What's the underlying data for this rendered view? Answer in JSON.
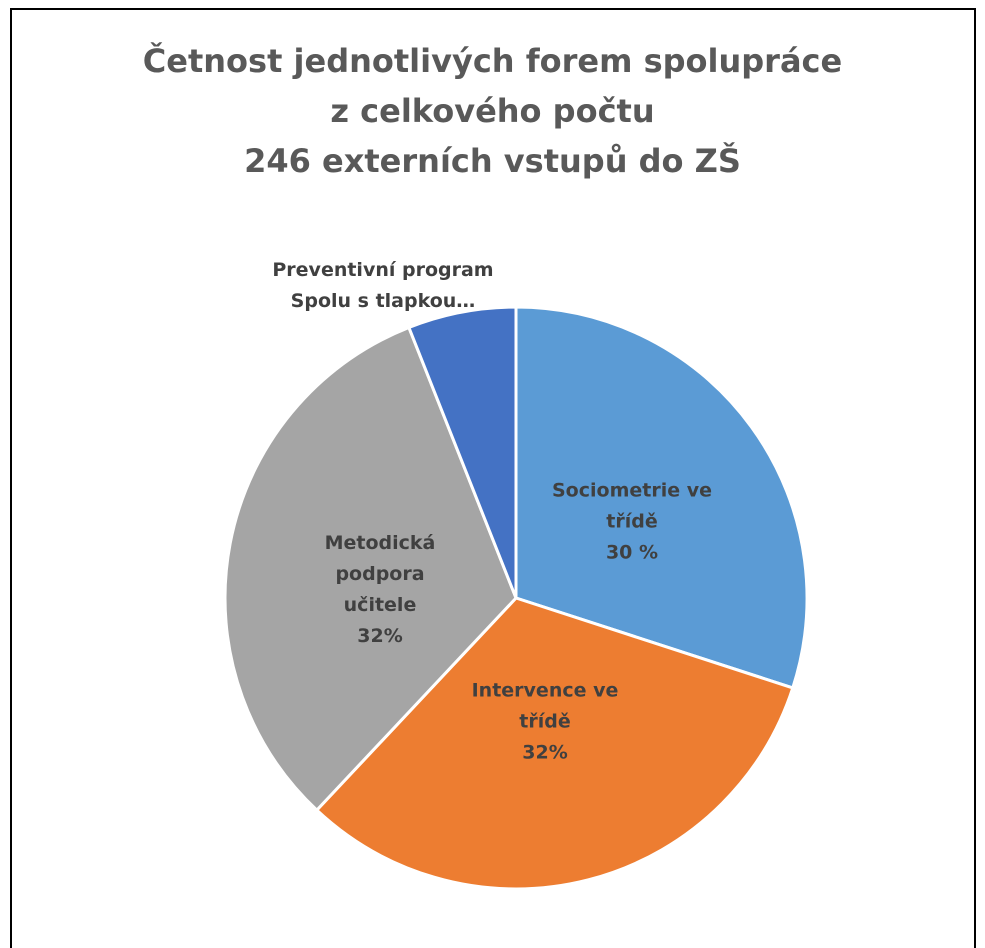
{
  "chart_data": {
    "type": "pie",
    "title": "Četnost jednotlivých forem spolupráce\nz celkového počtu\n246 externích vstupů do ZŠ",
    "categories": [
      "Sociometrie ve třídě",
      "Intervence ve třídě",
      "Metodická podpora učitele",
      "Preventivní program Spolu s tlapkou…"
    ],
    "values": [
      30,
      32,
      32,
      6
    ],
    "value_labels": [
      "30 %",
      "32%",
      "32%",
      null
    ],
    "colors": [
      "#5b9bd5",
      "#ed7d31",
      "#a5a5a5",
      "#4472c4"
    ]
  }
}
